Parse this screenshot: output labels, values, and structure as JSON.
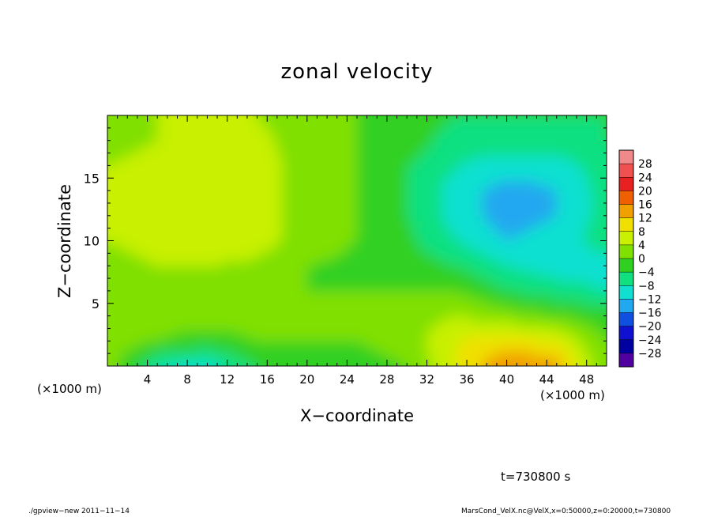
{
  "chart_data": {
    "type": "heatmap",
    "title": "zonal velocity",
    "xlabel": "X−coordinate",
    "ylabel": "Z−coordinate",
    "x_unit": "(×1000 m)",
    "xlim": [
      0,
      50
    ],
    "ylim": [
      0,
      20
    ],
    "x_ticks": [
      4,
      8,
      12,
      16,
      20,
      24,
      28,
      32,
      36,
      40,
      44,
      48
    ],
    "y_ticks": [
      5,
      10,
      15
    ],
    "colorbar": {
      "levels": [
        28,
        24,
        20,
        16,
        12,
        8,
        4,
        0,
        -4,
        -8,
        -12,
        -16,
        -20,
        -24,
        -28
      ],
      "level_labels": [
        "28",
        "24",
        "20",
        "16",
        "12",
        "8",
        "4",
        "0",
        "−4",
        "−8",
        "−12",
        "−16",
        "−20",
        "−24",
        "−28"
      ],
      "colors_top_to_bottom": [
        "#f08a8a",
        "#f05050",
        "#e82020",
        "#f06000",
        "#f0a000",
        "#f0e000",
        "#c8f000",
        "#80e000",
        "#30d020",
        "#10e080",
        "#10e0d0",
        "#20a8f0",
        "#1050e0",
        "#1010d0",
        "#0000a0",
        "#5000a0"
      ]
    },
    "field": {
      "x": [
        0,
        5,
        10,
        15,
        20,
        25,
        30,
        35,
        40,
        45,
        50
      ],
      "z": [
        0,
        2,
        4,
        6,
        8,
        10,
        12,
        14,
        16,
        18,
        20
      ],
      "values": [
        [
          2,
          -8,
          -10,
          -4,
          0,
          -2,
          0,
          8,
          16,
          14,
          0
        ],
        [
          2,
          0,
          -2,
          0,
          0,
          0,
          2,
          8,
          10,
          8,
          0
        ],
        [
          2,
          2,
          2,
          2,
          0,
          0,
          2,
          4,
          2,
          0,
          -2
        ],
        [
          2,
          2,
          4,
          2,
          0,
          0,
          0,
          0,
          -4,
          -6,
          -8
        ],
        [
          2,
          4,
          4,
          3,
          0,
          -1,
          -2,
          -4,
          -8,
          -10,
          -10
        ],
        [
          4,
          6,
          7,
          6,
          2,
          0,
          -3,
          -8,
          -12,
          -10,
          -6
        ],
        [
          4,
          6,
          8,
          6,
          2,
          0,
          -4,
          -10,
          -14,
          -12,
          -6
        ],
        [
          4,
          7,
          8,
          6,
          2,
          0,
          -4,
          -10,
          -14,
          -12,
          -6
        ],
        [
          4,
          6,
          7,
          6,
          2,
          0,
          -4,
          -8,
          -10,
          -10,
          -6
        ],
        [
          2,
          4,
          6,
          5,
          2,
          0,
          -2,
          -6,
          -6,
          -6,
          -4
        ],
        [
          2,
          4,
          4,
          4,
          2,
          0,
          -2,
          -4,
          -4,
          -4,
          -4
        ]
      ]
    }
  },
  "labels": {
    "title": "zonal velocity",
    "xlabel": "X−coordinate",
    "ylabel": "Z−coordinate",
    "xunit_left": "(×1000 m)",
    "xunit_right": "(×1000 m)",
    "time": "t=730800 s",
    "footer_left": "./gpview−new   2011−11−14",
    "footer_right": "MarsCond_VelX.nc@VelX,x=0:50000,z=0:20000,t=730800"
  }
}
